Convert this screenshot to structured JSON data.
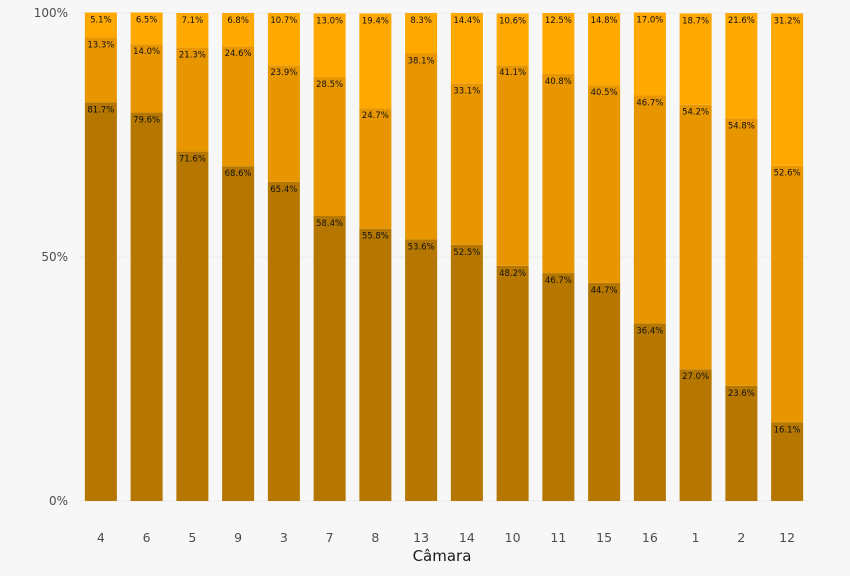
{
  "chart_data": {
    "type": "bar",
    "stacked": true,
    "xlabel": "Câmara",
    "ylabel": "",
    "ylim": [
      0,
      100
    ],
    "yticks": [
      "0%",
      "50%",
      "100%"
    ],
    "grid": true,
    "categories": [
      "4",
      "6",
      "5",
      "9",
      "3",
      "7",
      "8",
      "13",
      "14",
      "10",
      "11",
      "15",
      "16",
      "1",
      "2",
      "12"
    ],
    "series": [
      {
        "color": "#b57700",
        "values": [
          81.7,
          79.6,
          71.6,
          68.6,
          65.4,
          58.4,
          55.8,
          53.6,
          52.5,
          48.2,
          46.7,
          44.7,
          36.4,
          27.0,
          23.6,
          16.1
        ],
        "labels": [
          "81.7%",
          "79.6%",
          "71.6%",
          "68.6%",
          "65.4%",
          "58.4%",
          "55.8%",
          "53.6%",
          "52.5%",
          "48.2%",
          "46.7%",
          "44.7%",
          "36.4%",
          "27.0%",
          "23.6%",
          "16.1%"
        ]
      },
      {
        "color": "#e89600",
        "values": [
          13.3,
          14.0,
          21.3,
          24.6,
          23.9,
          28.5,
          24.7,
          38.1,
          33.1,
          41.1,
          40.8,
          40.5,
          46.7,
          54.2,
          54.8,
          52.6
        ],
        "labels": [
          "13.3%",
          "14.0%",
          "21.3%",
          "24.6%",
          "23.9%",
          "28.5%",
          "24.7%",
          "38.1%",
          "33.1%",
          "41.1%",
          "40.8%",
          "40.5%",
          "46.7%",
          "54.2%",
          "54.8%",
          "52.6%"
        ]
      },
      {
        "color": "#ffa800",
        "values": [
          5.1,
          6.5,
          7.1,
          6.8,
          10.7,
          13.0,
          19.4,
          8.3,
          14.4,
          10.6,
          12.5,
          14.8,
          17.0,
          18.7,
          21.6,
          31.2
        ],
        "labels": [
          "5.1%",
          "6.5%",
          "7.1%",
          "6.8%",
          "10.7%",
          "13.0%",
          "19.4%",
          "8.3%",
          "14.4%",
          "10.6%",
          "12.5%",
          "14.8%",
          "17.0%",
          "18.7%",
          "21.6%",
          "31.2%"
        ]
      }
    ]
  }
}
